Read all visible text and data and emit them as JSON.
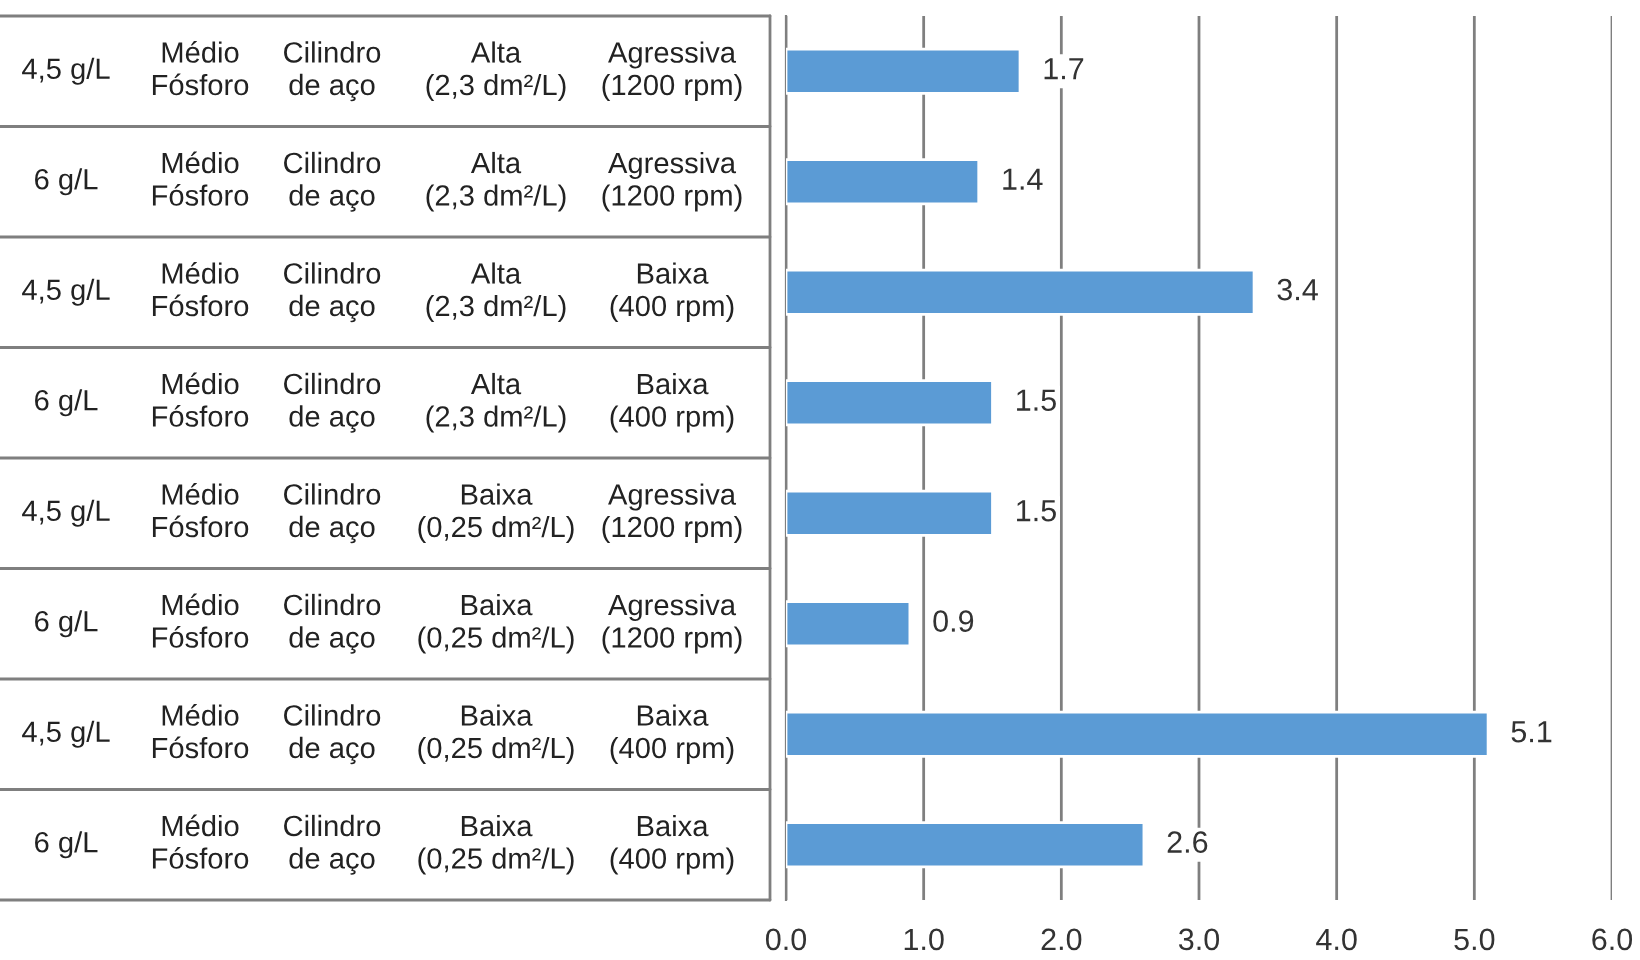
{
  "chart_data": {
    "type": "bar",
    "orientation": "horizontal",
    "categories": [
      "4,5 g/L\tMédio\nFósforo\tCilindro\nde aço\tAlta\n(2,3 dm²/L)\tAgressiva\n(1200 rpm)",
      "6 g/L\tMédio\nFósforo\tCilindro\nde aço\tAlta\n(2,3 dm²/L)\tAgressiva\n(1200 rpm)",
      "4,5 g/L\tMédio\nFósforo\tCilindro\nde aço\tAlta\n(2,3 dm²/L)\tBaixa\n(400 rpm)",
      "6 g/L\tMédio\nFósforo\tCilindro\nde aço\tAlta\n(2,3 dm²/L)\tBaixa\n(400 rpm)",
      "4,5 g/L\tMédio\nFósforo\tCilindro\nde aço\tBaixa\n(0,25 dm²/L)\tAgressiva\n(1200 rpm)",
      "6 g/L\tMédio\nFósforo\tCilindro\nde aço\tBaixa\n(0,25 dm²/L)\tAgressiva\n(1200 rpm)",
      "4,5 g/L\tMédio\nFósforo\tCilindro\nde aço\tBaixa\n(0,25 dm²/L)\tBaixa\n(400 rpm)",
      "6 g/L\tMédio\nFósforo\tCilindro\nde aço\tBaixa\n(0,25 dm²/L)\tBaixa\n(400 rpm)"
    ],
    "values": [
      1.7,
      1.4,
      3.4,
      1.5,
      1.5,
      0.9,
      5.1,
      2.6
    ],
    "color": "#5b9bd5",
    "data_labels": true,
    "xlim": [
      0,
      6
    ],
    "xticks": [
      {
        "value": 0,
        "label": "0.0"
      },
      {
        "value": 1,
        "label": "1.0"
      },
      {
        "value": 2,
        "label": "2.0"
      },
      {
        "value": 3,
        "label": "3.0"
      },
      {
        "value": 4,
        "label": "4.0"
      },
      {
        "value": 5,
        "label": "5.0"
      },
      {
        "value": 6,
        "label": "6.0"
      }
    ],
    "grid": "x"
  }
}
